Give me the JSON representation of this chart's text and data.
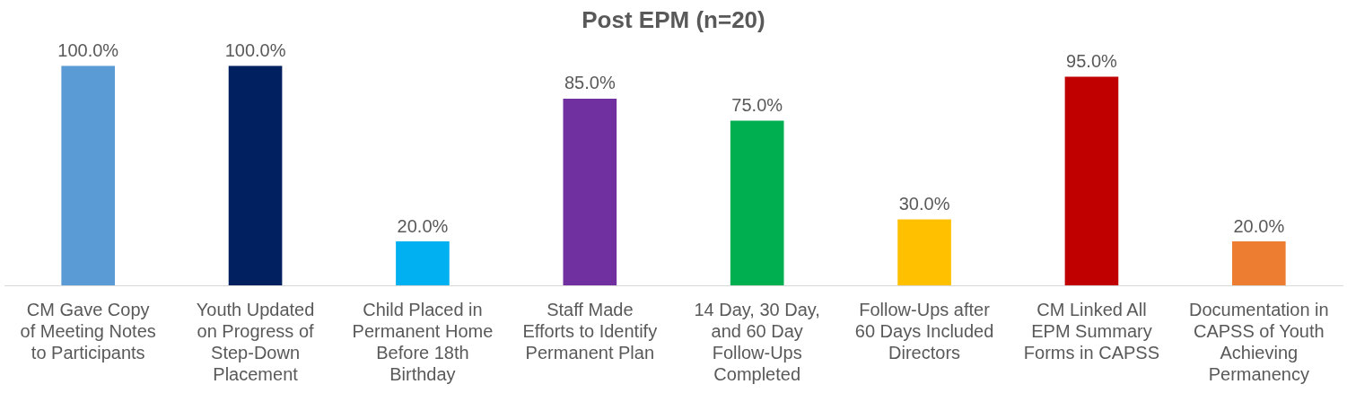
{
  "chart_data": {
    "type": "bar",
    "title": "Post EPM (n=20)",
    "categories": [
      "CM Gave Copy of Meeting Notes to Participants",
      "Youth Updated on Progress of Step-Down Placement",
      "Child Placed in Permanent Home Before 18th Birthday",
      "Staff Made Efforts to Identify Permanent Plan",
      "14 Day, 30 Day, and 60 Day Follow-Ups Completed",
      "Follow-Ups after 60 Days Included Directors",
      "CM Linked All EPM Summary Forms in CAPSS",
      "Documentation in CAPSS of Youth Achieving Permanency"
    ],
    "values": [
      100,
      100,
      20,
      85,
      75,
      30,
      95,
      20
    ],
    "value_labels": [
      "100.0%",
      "100.0%",
      "20.0%",
      "85.0%",
      "75.0%",
      "30.0%",
      "95.0%",
      "20.0%"
    ],
    "colors": [
      "#5b9bd5",
      "#002060",
      "#00b0f0",
      "#7030a0",
      "#00b050",
      "#ffc000",
      "#c00000",
      "#ed7d31"
    ],
    "grid": false,
    "legend": false
  }
}
